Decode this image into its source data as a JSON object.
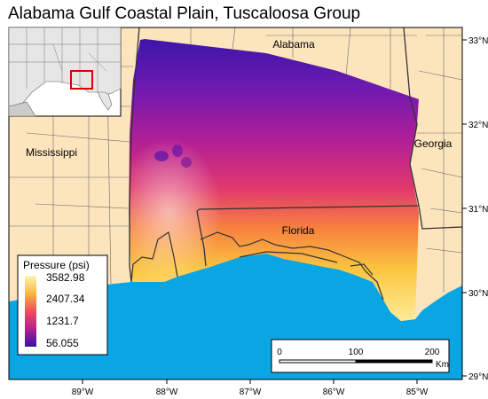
{
  "title": "Alabama Gulf Coastal Plain, Tuscaloosa Group",
  "states": {
    "alabama": "Alabama",
    "mississippi": "Mississippi",
    "georgia": "Georgia",
    "florida": "Florida"
  },
  "legend": {
    "title": "Pressure (psi)",
    "values": [
      "3582.98",
      "2407.34",
      "1231.7",
      "56.055"
    ],
    "ramp_colors": [
      "#fdf5b0",
      "#fbb83c",
      "#ef4e5c",
      "#b4208f",
      "#3412a8"
    ]
  },
  "scalebar": {
    "ticks": [
      "0",
      "100",
      "200"
    ],
    "unit": "Km"
  },
  "longitude_labels": [
    "89°W",
    "88°W",
    "87°W",
    "86°W",
    "85°W"
  ],
  "latitude_labels": [
    "33°N",
    "32°N",
    "31°N",
    "30°N",
    "29°N"
  ],
  "colors": {
    "land": "#fce4bc",
    "water": "#0aa6e4",
    "border": "#4a4a4a"
  }
}
